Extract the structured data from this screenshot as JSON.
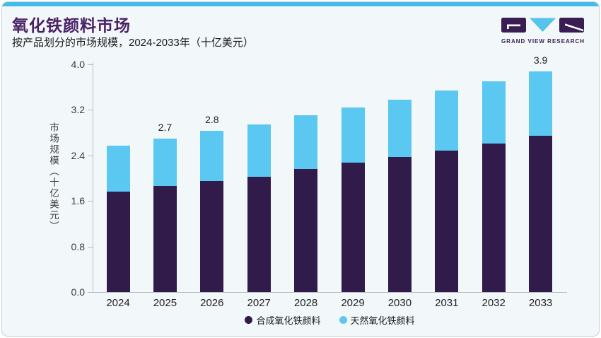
{
  "header": {
    "title": "氧化铁颜料市场",
    "subtitle": "按产品划分的市场规模，2024-2033年（十亿美元）",
    "logo": {
      "text": "GRAND VIEW RESEARCH"
    }
  },
  "colors": {
    "accent": "#43BCE8",
    "title": "#4A2365",
    "logo_purple": "#3A1D52",
    "logo_cyan": "#55C3EC",
    "synthetic_bar": "#311B4B",
    "natural_bar": "#5BC8F1",
    "card_background": "#F2F7FA",
    "axis": "#B4BCC3"
  },
  "chart_data": {
    "type": "bar",
    "stacked": true,
    "title": "氧化铁颜料市场",
    "subtitle": "按产品划分的市场规模，2024-2033年（十亿美元）",
    "categories": [
      "2024",
      "2025",
      "2026",
      "2027",
      "2028",
      "2029",
      "2030",
      "2031",
      "2032",
      "2033"
    ],
    "series": [
      {
        "name": "合成氧化铁颜料",
        "color": "#311B4B",
        "values": [
          1.77,
          1.86,
          1.95,
          2.03,
          2.16,
          2.27,
          2.37,
          2.49,
          2.61,
          2.74
        ]
      },
      {
        "name": "天然氧化铁颜料",
        "color": "#5BC8F1",
        "values": [
          0.8,
          0.84,
          0.88,
          0.92,
          0.94,
          0.97,
          1.01,
          1.05,
          1.09,
          1.14
        ]
      }
    ],
    "totals": [
      2.57,
      2.7,
      2.83,
      2.95,
      3.1,
      3.24,
      3.38,
      3.54,
      3.7,
      3.88
    ],
    "bar_labels": [
      "",
      "2.7",
      "2.8",
      "",
      "",
      "",
      "",
      "",
      "",
      "3.9"
    ],
    "ylabel": "市场规模（十亿美元）",
    "yticks": [
      0.0,
      0.8,
      1.6,
      2.4,
      3.2,
      4.0
    ],
    "ytick_labels": [
      "0.0",
      "0.8",
      "1.6",
      "2.4",
      "3.2",
      "4.0"
    ],
    "ylim": [
      0,
      4.0
    ],
    "grid": false,
    "legend_position": "bottom"
  }
}
